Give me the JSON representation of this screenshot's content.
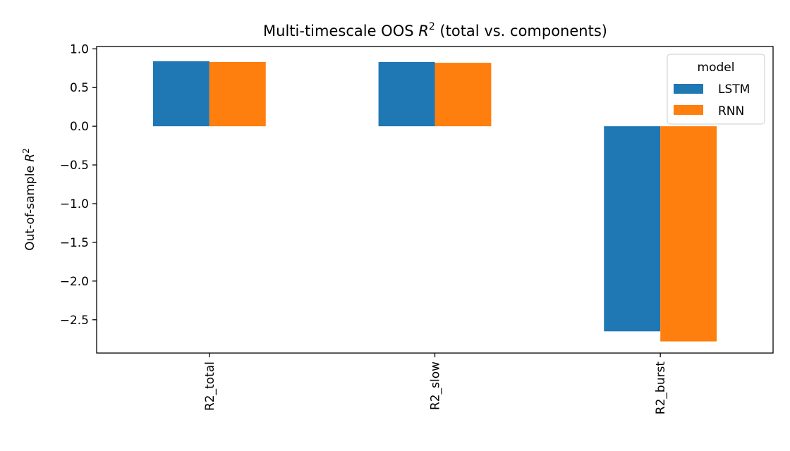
{
  "chart_data": {
    "type": "bar",
    "title_main": "Multi-timescale OOS ",
    "title_var": "R",
    "title_sup": "2",
    "title_rest": " (total vs. components)",
    "ylabel_main": "Out-of-sample ",
    "ylabel_var": "R",
    "ylabel_sup": "2",
    "xlabel": "",
    "categories": [
      "R2_total",
      "R2_slow",
      "R2_burst"
    ],
    "series": [
      {
        "name": "LSTM",
        "color": "#1f77b4",
        "values": [
          0.84,
          0.83,
          -2.65
        ]
      },
      {
        "name": "RNN",
        "color": "#ff7f0e",
        "values": [
          0.83,
          0.82,
          -2.78
        ]
      }
    ],
    "ylim": [
      -2.93,
      1.03
    ],
    "yticks": [
      1.0,
      0.5,
      0.0,
      -0.5,
      -1.0,
      -1.5,
      -2.0,
      -2.5
    ],
    "ytick_labels": [
      "1.0",
      "0.5",
      "0.0",
      "−0.5",
      "−1.0",
      "−1.5",
      "−2.0",
      "−2.5"
    ],
    "legend": {
      "title": "model",
      "placement": "top-right"
    },
    "grid": false,
    "xtick_rotation": 90
  }
}
